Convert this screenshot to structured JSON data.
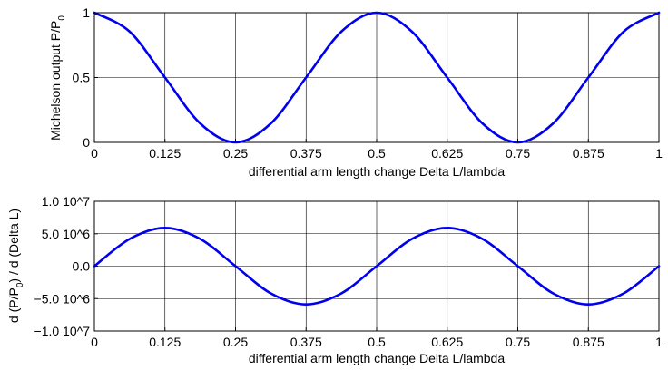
{
  "chart_data": [
    {
      "type": "line",
      "ylabel": "Michelson output P/P",
      "ylabel_sub": "0",
      "xlabel": "differential arm length change Delta L/lambda",
      "xlim": [
        0,
        1
      ],
      "ylim": [
        0,
        1
      ],
      "grid": true,
      "xticks": [
        0,
        0.125,
        0.25,
        0.375,
        0.5,
        0.625,
        0.75,
        0.875,
        1
      ],
      "xtick_labels": [
        "0",
        "0.125",
        "0.25",
        "0.375",
        "0.5",
        "0.625",
        "0.75",
        "0.875",
        "1"
      ],
      "yticks": [
        0,
        0.5,
        1
      ],
      "ytick_labels": [
        "0",
        "0.5",
        "1"
      ],
      "series": [
        {
          "color": "#0000ee",
          "x": [
            0,
            0.0625,
            0.125,
            0.1875,
            0.25,
            0.3125,
            0.375,
            0.4375,
            0.5,
            0.5625,
            0.625,
            0.6875,
            0.75,
            0.8125,
            0.875,
            0.9375,
            1
          ],
          "y": [
            1,
            0.854,
            0.5,
            0.146,
            0,
            0.146,
            0.5,
            0.854,
            1,
            0.854,
            0.5,
            0.146,
            0,
            0.146,
            0.5,
            0.854,
            1
          ]
        }
      ]
    },
    {
      "type": "line",
      "ylabel_pre": "d (P/P",
      "ylabel_sub": "0",
      "ylabel_post": ") / d (Delta L)",
      "xlabel": "differential arm length change Delta L/lambda",
      "xlim": [
        0,
        1
      ],
      "ylim": [
        -10000000,
        10000000
      ],
      "grid": true,
      "xticks": [
        0,
        0.125,
        0.25,
        0.375,
        0.5,
        0.625,
        0.75,
        0.875,
        1
      ],
      "xtick_labels": [
        "0",
        "0.125",
        "0.25",
        "0.375",
        "0.5",
        "0.625",
        "0.75",
        "0.875",
        "1"
      ],
      "yticks": [
        -10000000,
        -5000000,
        0,
        5000000,
        10000000
      ],
      "ytick_labels": [
        "−1.0 10^7",
        "−5.0 10^6",
        "0.0",
        "5.0 10^6",
        "1.0 10^7"
      ],
      "series": [
        {
          "color": "#0000ee",
          "x": [
            0,
            0.0625,
            0.125,
            0.1875,
            0.25,
            0.3125,
            0.375,
            0.4375,
            0.5,
            0.5625,
            0.625,
            0.6875,
            0.75,
            0.8125,
            0.875,
            0.9375,
            1
          ],
          "y": [
            0,
            4200000,
            5900000,
            4200000,
            0,
            -4200000,
            -5900000,
            -4200000,
            0,
            4200000,
            5900000,
            4200000,
            0,
            -4200000,
            -5900000,
            -4200000,
            0
          ]
        }
      ]
    }
  ]
}
